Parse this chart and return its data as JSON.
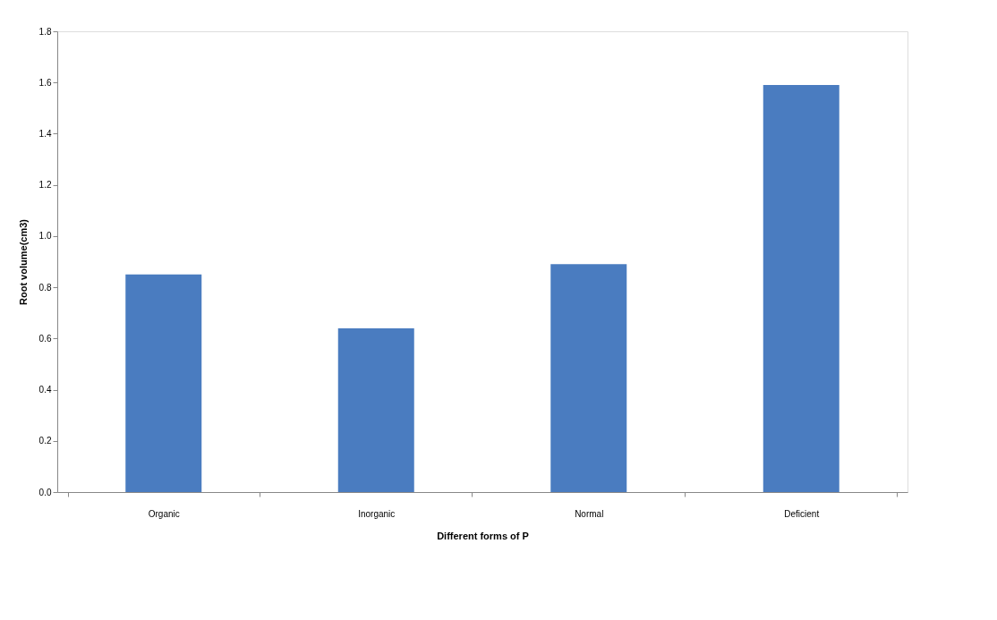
{
  "chart_data": {
    "type": "bar",
    "xlabel": "Different forms of P",
    "ylabel": "Root volume(cm3)",
    "categories": [
      "Organic",
      "Inorganic",
      "Normal",
      "Deficient"
    ],
    "values": [
      0.85,
      0.64,
      0.89,
      1.59
    ],
    "color": "#4a7cc0",
    "ylim": [
      0,
      1.8
    ],
    "yticks": [
      {
        "value": 0,
        "label": "0.0"
      },
      0.2,
      0.4,
      0.6,
      0.8,
      {
        "value": 1,
        "label": "1.0"
      },
      1.2,
      1.4,
      1.6,
      1.8
    ],
    "grid": false
  }
}
